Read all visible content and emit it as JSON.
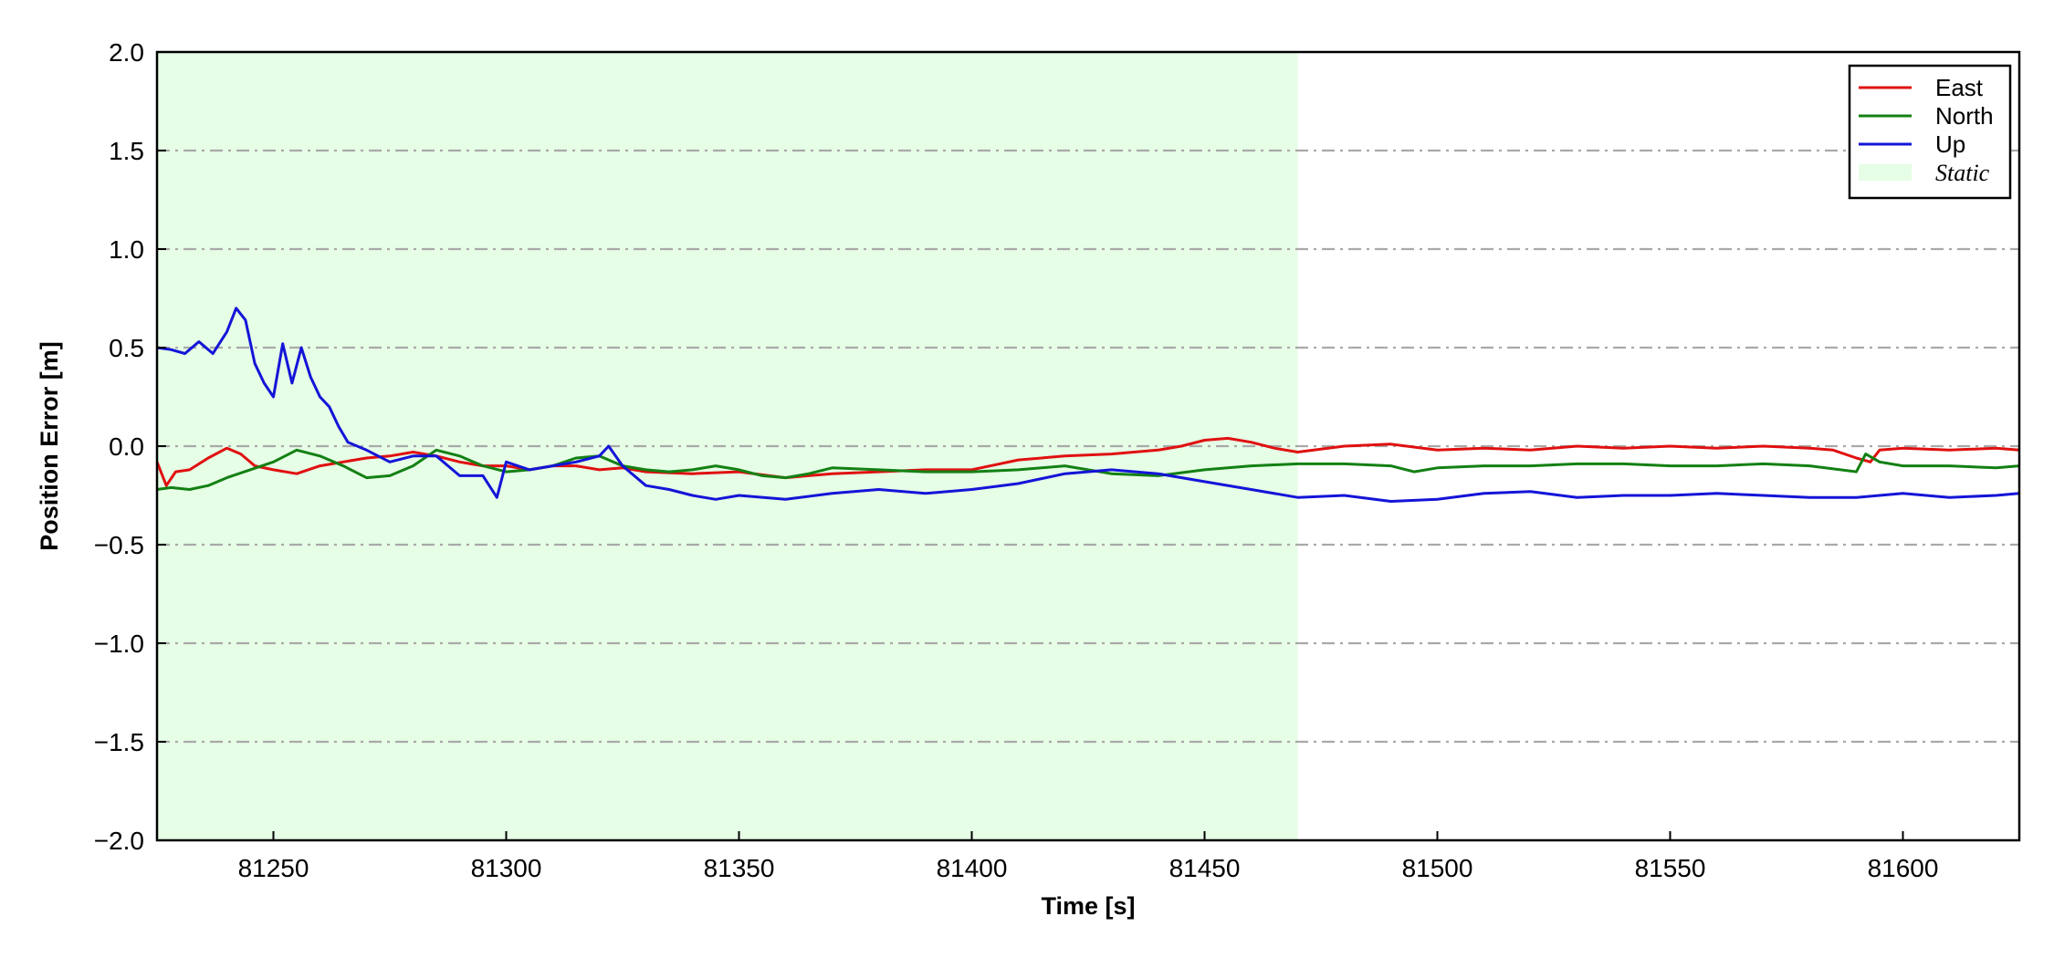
{
  "chart_data": {
    "type": "line",
    "title": "",
    "xlabel": "Time [s]",
    "ylabel": "Position Error [m]",
    "xlim": [
      81225,
      81625
    ],
    "ylim": [
      -2.0,
      2.0
    ],
    "xticks": [
      81250,
      81300,
      81350,
      81400,
      81450,
      81500,
      81550,
      81600
    ],
    "xtick_labels": [
      "81250",
      "81300",
      "81350",
      "81400",
      "81450",
      "81500",
      "81550",
      "81600"
    ],
    "yticks": [
      -2.0,
      -1.5,
      -1.0,
      -0.5,
      0.0,
      0.5,
      1.0,
      1.5,
      2.0
    ],
    "ytick_labels": [
      "−2.0",
      "−1.5",
      "−1.0",
      "−0.5",
      "0.0",
      "0.5",
      "1.0",
      "1.5",
      "2.0"
    ],
    "grid": "horizontal dash-dot",
    "legend_position": "top-right",
    "static_region": {
      "label": "Static",
      "x_start": 81225,
      "x_end": 81470,
      "color": "#e6fde6"
    },
    "series": [
      {
        "name": "East",
        "color": "#e01010",
        "x": [
          81225,
          81227,
          81229,
          81232,
          81236,
          81240,
          81243,
          81246,
          81250,
          81255,
          81260,
          81265,
          81270,
          81275,
          81280,
          81285,
          81290,
          81295,
          81300,
          81305,
          81310,
          81315,
          81320,
          81325,
          81330,
          81340,
          81350,
          81360,
          81370,
          81380,
          81390,
          81400,
          81410,
          81420,
          81430,
          81440,
          81445,
          81450,
          81455,
          81460,
          81465,
          81470,
          81480,
          81490,
          81500,
          81510,
          81520,
          81530,
          81540,
          81550,
          81560,
          81570,
          81580,
          81585,
          81590,
          81593,
          81595,
          81600,
          81610,
          81620,
          81625
        ],
        "y": [
          -0.08,
          -0.2,
          -0.13,
          -0.12,
          -0.06,
          -0.01,
          -0.04,
          -0.1,
          -0.12,
          -0.14,
          -0.1,
          -0.08,
          -0.06,
          -0.05,
          -0.03,
          -0.05,
          -0.08,
          -0.1,
          -0.1,
          -0.12,
          -0.1,
          -0.1,
          -0.12,
          -0.11,
          -0.13,
          -0.14,
          -0.13,
          -0.16,
          -0.14,
          -0.13,
          -0.12,
          -0.12,
          -0.07,
          -0.05,
          -0.04,
          -0.02,
          0.0,
          0.03,
          0.04,
          0.02,
          -0.01,
          -0.03,
          0.0,
          0.01,
          -0.02,
          -0.01,
          -0.02,
          0.0,
          -0.01,
          0.0,
          -0.01,
          0.0,
          -0.01,
          -0.02,
          -0.06,
          -0.08,
          -0.02,
          -0.01,
          -0.02,
          -0.01,
          -0.02
        ]
      },
      {
        "name": "North",
        "color": "#138013",
        "x": [
          81225,
          81228,
          81232,
          81236,
          81240,
          81245,
          81250,
          81255,
          81260,
          81265,
          81270,
          81275,
          81280,
          81285,
          81290,
          81295,
          81300,
          81305,
          81310,
          81315,
          81320,
          81325,
          81330,
          81335,
          81340,
          81345,
          81350,
          81355,
          81360,
          81365,
          81370,
          81380,
          81390,
          81400,
          81410,
          81420,
          81430,
          81440,
          81450,
          81460,
          81470,
          81480,
          81490,
          81495,
          81500,
          81510,
          81520,
          81530,
          81540,
          81550,
          81560,
          81570,
          81580,
          81590,
          81592,
          81595,
          81600,
          81610,
          81620,
          81625
        ],
        "y": [
          -0.22,
          -0.21,
          -0.22,
          -0.2,
          -0.16,
          -0.12,
          -0.08,
          -0.02,
          -0.05,
          -0.1,
          -0.16,
          -0.15,
          -0.1,
          -0.02,
          -0.05,
          -0.1,
          -0.13,
          -0.12,
          -0.1,
          -0.06,
          -0.05,
          -0.1,
          -0.12,
          -0.13,
          -0.12,
          -0.1,
          -0.12,
          -0.15,
          -0.16,
          -0.14,
          -0.11,
          -0.12,
          -0.13,
          -0.13,
          -0.12,
          -0.1,
          -0.14,
          -0.15,
          -0.12,
          -0.1,
          -0.09,
          -0.09,
          -0.1,
          -0.13,
          -0.11,
          -0.1,
          -0.1,
          -0.09,
          -0.09,
          -0.1,
          -0.1,
          -0.09,
          -0.1,
          -0.13,
          -0.04,
          -0.08,
          -0.1,
          -0.1,
          -0.11,
          -0.1
        ]
      },
      {
        "name": "Up",
        "color": "#1414d8",
        "x": [
          81225,
          81228,
          81231,
          81234,
          81237,
          81240,
          81242,
          81244,
          81246,
          81248,
          81250,
          81252,
          81254,
          81256,
          81258,
          81260,
          81262,
          81264,
          81266,
          81270,
          81275,
          81280,
          81285,
          81290,
          81295,
          81298,
          81300,
          81305,
          81310,
          81315,
          81320,
          81322,
          81325,
          81330,
          81335,
          81340,
          81345,
          81350,
          81360,
          81370,
          81380,
          81390,
          81400,
          81410,
          81420,
          81430,
          81440,
          81450,
          81460,
          81470,
          81480,
          81490,
          81500,
          81510,
          81520,
          81530,
          81540,
          81550,
          81560,
          81570,
          81580,
          81590,
          81600,
          81610,
          81620,
          81625
        ],
        "y": [
          0.5,
          0.49,
          0.47,
          0.53,
          0.47,
          0.58,
          0.7,
          0.64,
          0.42,
          0.32,
          0.25,
          0.52,
          0.32,
          0.5,
          0.35,
          0.25,
          0.2,
          0.1,
          0.02,
          -0.02,
          -0.08,
          -0.05,
          -0.05,
          -0.15,
          -0.15,
          -0.26,
          -0.08,
          -0.12,
          -0.1,
          -0.08,
          -0.05,
          0.0,
          -0.1,
          -0.2,
          -0.22,
          -0.25,
          -0.27,
          -0.25,
          -0.27,
          -0.24,
          -0.22,
          -0.24,
          -0.22,
          -0.19,
          -0.14,
          -0.12,
          -0.14,
          -0.18,
          -0.22,
          -0.26,
          -0.25,
          -0.28,
          -0.27,
          -0.24,
          -0.23,
          -0.26,
          -0.25,
          -0.25,
          -0.24,
          -0.25,
          -0.26,
          -0.26,
          -0.24,
          -0.26,
          -0.25,
          -0.24
        ]
      }
    ]
  }
}
